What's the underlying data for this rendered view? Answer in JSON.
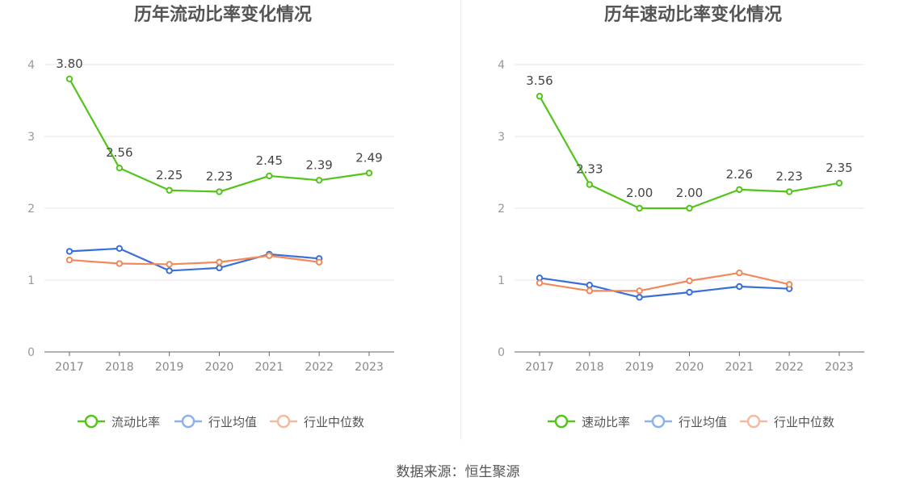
{
  "source_text": "数据来源：恒生聚源",
  "colors": {
    "primary": "#52c41a",
    "avg": "#3b6fd8",
    "median": "#f08a5d",
    "avg_legend": "#8fb0ee",
    "median_legend": "#f4b9a3",
    "grid": "#e6e6ee",
    "axis": "#666666",
    "tick_text": "#999999",
    "title": "#555555",
    "label": "#444444"
  },
  "chart_data": [
    {
      "type": "line",
      "title": "历年流动比率变化情况",
      "categories": [
        "2017",
        "2018",
        "2019",
        "2020",
        "2021",
        "2022",
        "2023"
      ],
      "yticks": [
        "0",
        "1",
        "2",
        "3",
        "4"
      ],
      "ylim": [
        0,
        4
      ],
      "grid": true,
      "legend_position": "bottom",
      "series": [
        {
          "name": "流动比率",
          "role": "primary",
          "values": [
            3.8,
            2.56,
            2.25,
            2.23,
            2.45,
            2.39,
            2.49
          ],
          "labels": [
            "3.80",
            "2.56",
            "2.25",
            "2.23",
            "2.45",
            "2.39",
            "2.49"
          ]
        },
        {
          "name": "行业均值",
          "role": "avg",
          "values": [
            1.4,
            1.44,
            1.13,
            1.17,
            1.36,
            1.3,
            null
          ]
        },
        {
          "name": "行业中位数",
          "role": "median",
          "values": [
            1.28,
            1.23,
            1.22,
            1.25,
            1.34,
            1.25,
            null
          ]
        }
      ]
    },
    {
      "type": "line",
      "title": "历年速动比率变化情况",
      "categories": [
        "2017",
        "2018",
        "2019",
        "2020",
        "2021",
        "2022",
        "2023"
      ],
      "yticks": [
        "0",
        "1",
        "2",
        "3",
        "4"
      ],
      "ylim": [
        0,
        4
      ],
      "grid": true,
      "legend_position": "bottom",
      "series": [
        {
          "name": "速动比率",
          "role": "primary",
          "values": [
            3.56,
            2.33,
            2.0,
            2.0,
            2.26,
            2.23,
            2.35
          ],
          "labels": [
            "3.56",
            "2.33",
            "2.00",
            "2.00",
            "2.26",
            "2.23",
            "2.35"
          ]
        },
        {
          "name": "行业均值",
          "role": "avg",
          "values": [
            1.03,
            0.93,
            0.76,
            0.83,
            0.91,
            0.88,
            null
          ]
        },
        {
          "name": "行业中位数",
          "role": "median",
          "values": [
            0.96,
            0.85,
            0.85,
            0.99,
            1.1,
            0.94,
            null
          ]
        }
      ]
    }
  ]
}
